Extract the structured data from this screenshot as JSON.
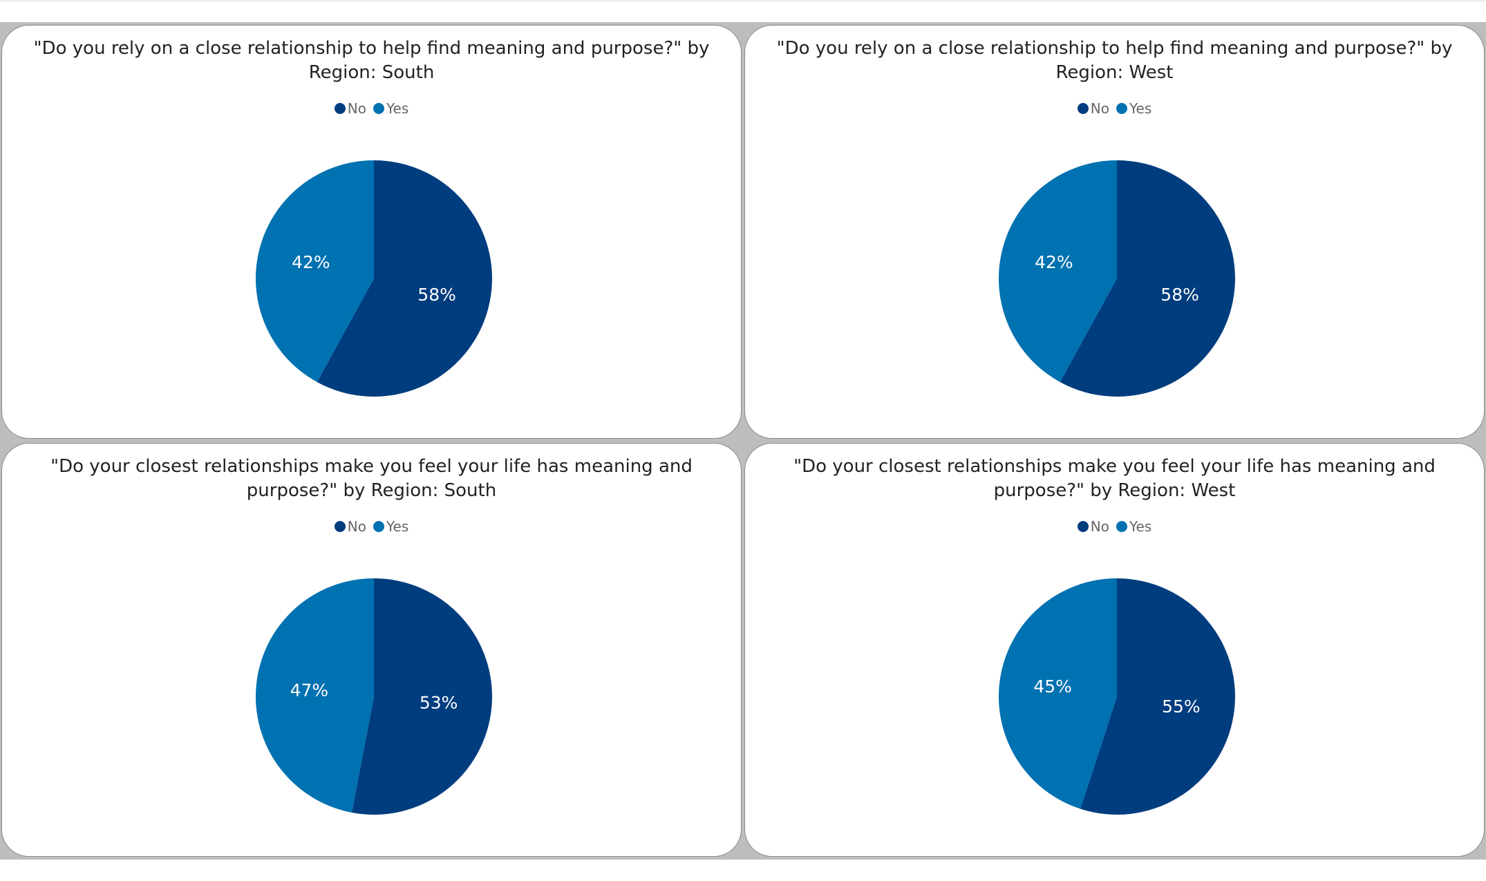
{
  "colors": {
    "No": "#003d7e",
    "Yes": "#0071b1"
  },
  "chart_data": [
    {
      "type": "pie",
      "title": "\"Do you rely on a close relationship to help find meaning and purpose?\" by Region: South",
      "legend_position": "top",
      "categories": [
        "No",
        "Yes"
      ],
      "values": [
        58,
        42
      ],
      "labels": [
        "58%",
        "42%"
      ]
    },
    {
      "type": "pie",
      "title": "\"Do you rely on a close relationship to help find meaning and purpose?\" by Region: West",
      "legend_position": "top",
      "categories": [
        "No",
        "Yes"
      ],
      "values": [
        58,
        42
      ],
      "labels": [
        "58%",
        "42%"
      ]
    },
    {
      "type": "pie",
      "title": "\"Do your closest relationships make you feel your life has meaning and purpose?\" by Region: South",
      "legend_position": "top",
      "categories": [
        "No",
        "Yes"
      ],
      "values": [
        53,
        47
      ],
      "labels": [
        "53%",
        "47%"
      ]
    },
    {
      "type": "pie",
      "title": "\"Do your closest relationships make you feel your life has meaning and purpose?\" by Region: West",
      "legend_position": "top",
      "categories": [
        "No",
        "Yes"
      ],
      "values": [
        55,
        45
      ],
      "labels": [
        "55%",
        "45%"
      ]
    }
  ]
}
